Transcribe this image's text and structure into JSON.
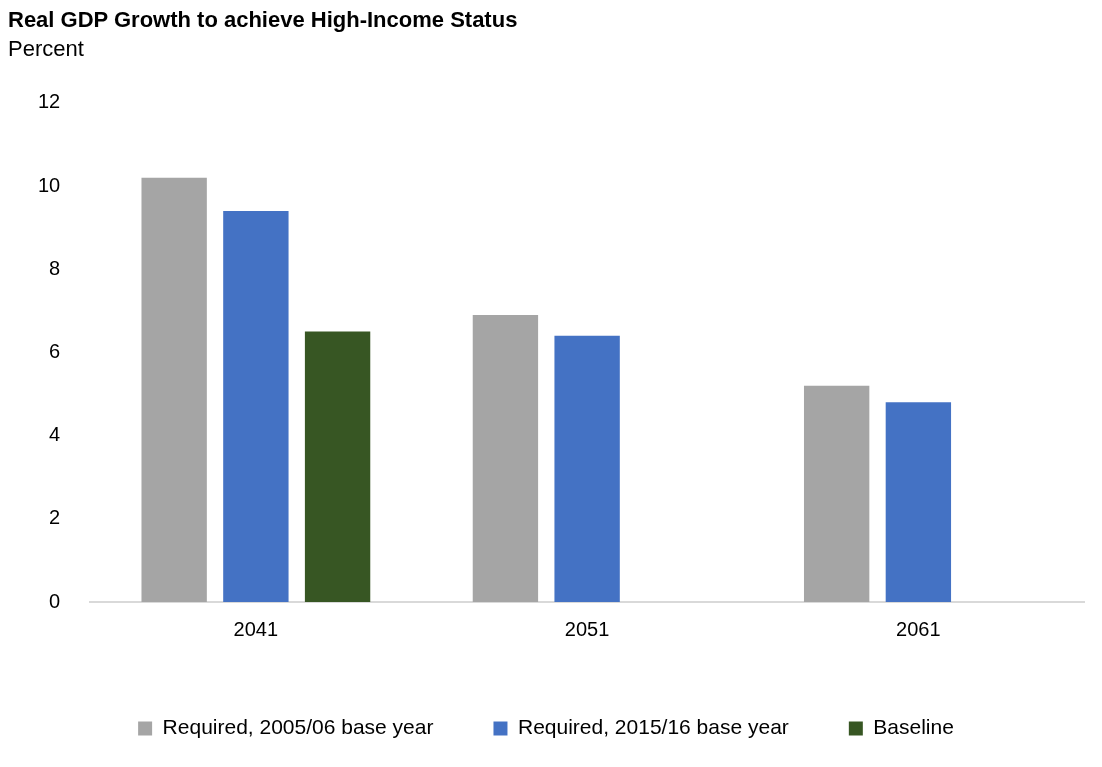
{
  "chart_data": {
    "type": "bar",
    "title": "Real GDP Growth to achieve High-Income Status",
    "subtitle": "Percent",
    "categories": [
      "2041",
      "2051",
      "2061"
    ],
    "series": [
      {
        "name": "Required, 2005/06 base year",
        "color": "#a5a5a5",
        "values": [
          10.2,
          6.9,
          5.2
        ]
      },
      {
        "name": "Required, 2015/16 base year",
        "color": "#4472c4",
        "values": [
          9.4,
          6.4,
          4.8
        ]
      },
      {
        "name": "Baseline",
        "color": "#375623",
        "values": [
          6.5,
          null,
          null
        ]
      }
    ],
    "ylim": [
      0,
      12
    ],
    "yticks": [
      0,
      2,
      4,
      6,
      8,
      10,
      12
    ],
    "grid": false,
    "legend": "bottom"
  }
}
